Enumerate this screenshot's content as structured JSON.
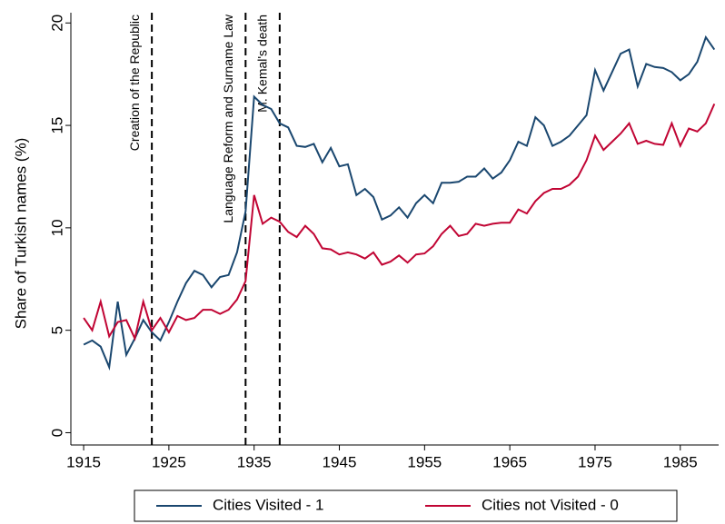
{
  "chart_data": {
    "type": "line",
    "y_label": "Share of Turkish names (%)",
    "x": [
      1915,
      1916,
      1917,
      1918,
      1919,
      1920,
      1921,
      1922,
      1923,
      1924,
      1925,
      1926,
      1927,
      1928,
      1929,
      1930,
      1931,
      1932,
      1933,
      1934,
      1935,
      1936,
      1937,
      1938,
      1939,
      1940,
      1941,
      1942,
      1943,
      1944,
      1945,
      1946,
      1947,
      1948,
      1949,
      1950,
      1951,
      1952,
      1953,
      1954,
      1955,
      1956,
      1957,
      1958,
      1959,
      1960,
      1961,
      1962,
      1963,
      1964,
      1965,
      1966,
      1967,
      1968,
      1969,
      1970,
      1971,
      1972,
      1973,
      1974,
      1975,
      1976,
      1977,
      1978,
      1979,
      1980,
      1981,
      1982,
      1983,
      1984,
      1985,
      1986,
      1987,
      1988,
      1989
    ],
    "series": [
      {
        "name": "Cities Visited - 1",
        "color": "#1a476f",
        "values": [
          4.3,
          4.5,
          4.2,
          3.2,
          6.4,
          3.8,
          4.6,
          5.5,
          4.9,
          4.5,
          5.4,
          6.4,
          7.3,
          7.9,
          7.7,
          7.1,
          7.6,
          7.7,
          8.8,
          10.8,
          16.4,
          16.0,
          15.8,
          15.1,
          14.9,
          14.0,
          13.95,
          14.1,
          13.2,
          13.9,
          13.0,
          13.1,
          11.6,
          11.9,
          11.5,
          10.4,
          10.6,
          11.0,
          10.5,
          11.2,
          11.6,
          11.2,
          12.2,
          12.2,
          12.25,
          12.5,
          12.5,
          12.9,
          12.4,
          12.7,
          13.3,
          14.2,
          14.0,
          15.4,
          15.0,
          14.0,
          14.2,
          14.5,
          15.0,
          15.5,
          17.7,
          16.7,
          17.6,
          18.5,
          18.7,
          16.9,
          18.0,
          17.85,
          17.8,
          17.6,
          17.2,
          17.5,
          18.1,
          19.3,
          18.7
        ]
      },
      {
        "name": "Cities not Visited - 0",
        "color": "#c10534",
        "values": [
          5.6,
          5.0,
          6.4,
          4.7,
          5.4,
          5.5,
          4.6,
          6.4,
          5.0,
          5.6,
          4.9,
          5.7,
          5.5,
          5.6,
          6.0,
          6.0,
          5.8,
          6.0,
          6.5,
          7.4,
          11.6,
          10.2,
          10.5,
          10.3,
          9.8,
          9.55,
          10.1,
          9.7,
          9.0,
          8.95,
          8.7,
          8.8,
          8.7,
          8.5,
          8.8,
          8.2,
          8.35,
          8.65,
          8.3,
          8.7,
          8.75,
          9.1,
          9.7,
          10.1,
          9.6,
          9.7,
          10.2,
          10.1,
          10.2,
          10.25,
          10.25,
          10.9,
          10.7,
          11.3,
          11.7,
          11.9,
          11.9,
          12.1,
          12.5,
          13.3,
          14.5,
          13.8,
          14.2,
          14.6,
          15.1,
          14.1,
          14.25,
          14.1,
          14.05,
          15.1,
          14.0,
          14.85,
          14.7,
          15.1,
          16.05
        ]
      }
    ],
    "annotations": [
      {
        "x": 1923,
        "label": "Creation of the Republic"
      },
      {
        "x": 1934,
        "label": "Language Reform and Surname Law"
      },
      {
        "x": 1938,
        "label": "M. Kemal's death"
      }
    ],
    "xlim": [
      1913.5,
      1989.5
    ],
    "ylim": [
      -0.6,
      20.5
    ],
    "xticks": [
      1915,
      1925,
      1935,
      1945,
      1955,
      1965,
      1975,
      1985
    ],
    "yticks": [
      0,
      5,
      10,
      15,
      20
    ],
    "legend": "bottom"
  }
}
